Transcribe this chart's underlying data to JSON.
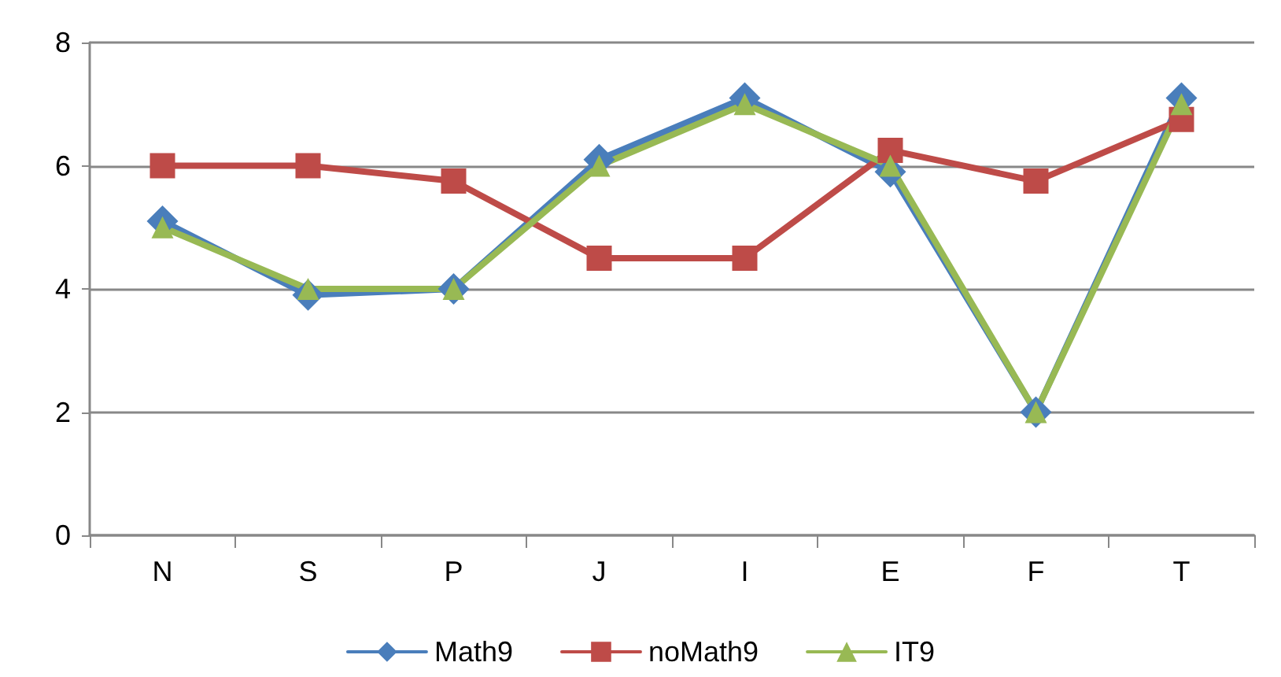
{
  "chart_data": {
    "type": "line",
    "categories": [
      "N",
      "S",
      "P",
      "J",
      "I",
      "E",
      "F",
      "T"
    ],
    "series": [
      {
        "name": "Math9",
        "color": "#4a7ebb",
        "marker": "diamond",
        "values": [
          5.1,
          3.9,
          4,
          6.1,
          7.1,
          5.9,
          2,
          7.1
        ]
      },
      {
        "name": "noMath9",
        "color": "#be4b48",
        "marker": "square",
        "values": [
          6,
          6,
          5.75,
          4.5,
          4.5,
          6.25,
          5.75,
          6.75
        ]
      },
      {
        "name": "IT9",
        "color": "#98b954",
        "marker": "triangle",
        "values": [
          5,
          4,
          4,
          6,
          7,
          6,
          2,
          7
        ]
      }
    ],
    "ylim": [
      0,
      8
    ],
    "yticks": [
      0,
      2,
      4,
      6,
      8
    ],
    "grid": "y",
    "legend": "bottom"
  }
}
